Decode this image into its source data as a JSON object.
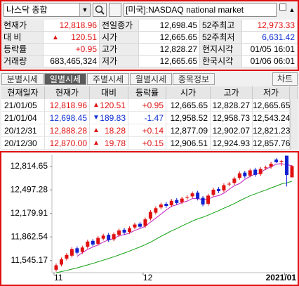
{
  "search": {
    "symbol": "나스닥 종합",
    "market": "[미국]:NASDAQ national market"
  },
  "quote": {
    "rows": [
      {
        "cells": [
          "현재가",
          "12,818.96",
          "전일종가",
          "12,698.45",
          "52주최고",
          "12,973.33"
        ],
        "colors": [
          "#000",
          "#e01010",
          "#000",
          "#000",
          "#000",
          "#e01010"
        ]
      },
      {
        "cells": [
          "대 비",
          "120.51",
          "시가",
          "12,665.65",
          "52주최저",
          "6,631.42"
        ],
        "colors": [
          "#000",
          "#e01010",
          "#000",
          "#000",
          "#000",
          "#1030d0"
        ],
        "trend": "up"
      },
      {
        "cells": [
          "등락률",
          "+0.95",
          "고가",
          "12,828.27",
          "현지시각",
          "01/05 16:01"
        ],
        "colors": [
          "#000",
          "#e01010",
          "#000",
          "#000",
          "#000",
          "#000"
        ]
      },
      {
        "cells": [
          "거래량",
          "683,465,324",
          "저가",
          "12,665.65",
          "한국시각",
          "01/06 06:01"
        ],
        "colors": [
          "#000",
          "#000",
          "#000",
          "#000",
          "#000",
          "#000"
        ]
      }
    ]
  },
  "tabs": {
    "items": [
      "분별시세",
      "일별시세",
      "주별시세",
      "월별시세",
      "종목정보"
    ],
    "active": 1,
    "button": "차트"
  },
  "daily": {
    "header": [
      "현재일자",
      "현재가",
      "대비",
      "등락률",
      "시가",
      "고가",
      "저가"
    ],
    "rows": [
      {
        "cells": [
          "21/01/05",
          "12,818.96",
          "120.51",
          "+0.95",
          "12,665.65",
          "12,828.27",
          "12,665.65"
        ],
        "trend": "up"
      },
      {
        "cells": [
          "21/01/04",
          "12,698.45",
          "189.83",
          "-1.47",
          "12,958.52",
          "12,958.73",
          "12,543.24"
        ],
        "trend": "down"
      },
      {
        "cells": [
          "20/12/31",
          "12,888.28",
          "18.28",
          "+0.14",
          "12,877.09",
          "12,902.07",
          "12,821.23"
        ],
        "trend": "up"
      },
      {
        "cells": [
          "20/12/30",
          "12,870.00",
          "19.78",
          "+0.15",
          "12,906.51",
          "12,924.93",
          "12,857.76"
        ],
        "trend": "up"
      }
    ]
  },
  "chart_data": {
    "type": "candlestick",
    "categories": [
      "11",
      null,
      null,
      null,
      null,
      null,
      null,
      null,
      null,
      null,
      null,
      null,
      null,
      null,
      null,
      null,
      null,
      "12",
      null,
      null,
      null,
      null,
      null,
      null,
      null,
      null,
      null,
      null,
      null,
      null,
      null,
      null,
      null,
      null,
      null,
      null,
      null,
      null,
      null,
      null,
      null,
      null,
      null,
      null,
      "2021/01",
      null
    ],
    "open": [
      11420,
      11490,
      11570,
      11610,
      11710,
      11660,
      11730,
      11810,
      11770,
      11840,
      11890,
      11830,
      11890,
      11960,
      11930,
      11990,
      12040,
      12010,
      12110,
      12190,
      12260,
      12310,
      12290,
      12360,
      12330,
      12390,
      12410,
      12460,
      12390,
      12310,
      12430,
      12510,
      12490,
      12570,
      12590,
      12660,
      12730,
      12690,
      12770,
      12710,
      12790,
      12810,
      12906.51,
      12877.09,
      12958.52,
      12665.65
    ],
    "high": [
      11505,
      11585,
      11645,
      11725,
      11735,
      11745,
      11825,
      11835,
      11875,
      11905,
      11915,
      11925,
      11975,
      11985,
      12005,
      12055,
      12065,
      12125,
      12225,
      12275,
      12325,
      12335,
      12375,
      12385,
      12405,
      12425,
      12475,
      12485,
      12415,
      12445,
      12525,
      12535,
      12585,
      12605,
      12675,
      12745,
      12755,
      12785,
      12795,
      12805,
      12825,
      12875,
      12924.93,
      12902.07,
      12958.73,
      12828.27
    ],
    "low": [
      11395,
      11465,
      11545,
      11585,
      11625,
      11635,
      11705,
      11735,
      11745,
      11815,
      11795,
      11805,
      11865,
      11895,
      11905,
      11965,
      11975,
      11985,
      12085,
      12165,
      12235,
      12255,
      12265,
      12295,
      12305,
      12365,
      12385,
      12355,
      12275,
      12285,
      12405,
      12455,
      12465,
      12545,
      12565,
      12635,
      12655,
      12665,
      12675,
      12685,
      12765,
      12785,
      12857.76,
      12821.23,
      12543.24,
      12665.65
    ],
    "close": [
      11480,
      11560,
      11620,
      11700,
      11650,
      11720,
      11800,
      11760,
      11850,
      11880,
      11820,
      11900,
      11950,
      11920,
      11980,
      12030,
      12000,
      12100,
      12200,
      12250,
      12300,
      12280,
      12350,
      12320,
      12380,
      12400,
      12450,
      12380,
      12300,
      12420,
      12500,
      12480,
      12560,
      12580,
      12650,
      12720,
      12680,
      12760,
      12700,
      12780,
      12800,
      12850,
      12870,
      12888.28,
      12698.45,
      12818.96
    ],
    "up_color": "#e01010",
    "down_color": "#1020d0",
    "series": [
      {
        "color": "#c020c0",
        "values": [
          null,
          null,
          null,
          null,
          11602,
          11650,
          11694,
          11726,
          11756,
          11794,
          11822,
          11842,
          11880,
          11894,
          11914,
          11950,
          11976,
          12006,
          12062,
          12116,
          12170,
          12226,
          12276,
          12296,
          12326,
          12346,
          12380,
          12380,
          12366,
          12372,
          12404,
          12420,
          12452,
          12504,
          12554,
          12582,
          12638,
          12680,
          12712,
          12728,
          12780,
          12806,
          12844,
          12852,
          12836,
          12825
        ]
      },
      {
        "color": "#10a010",
        "values": [
          11380,
          11395,
          11410,
          11428,
          11445,
          11465,
          11485,
          11505,
          11528,
          11550,
          11572,
          11595,
          11620,
          11645,
          11672,
          11700,
          11728,
          11758,
          11792,
          11830,
          11871,
          11907,
          11944,
          11975,
          12011,
          12044,
          12077,
          12106,
          12129,
          12156,
          12187,
          12217,
          12250,
          12280,
          12313,
          12350,
          12385,
          12418,
          12443,
          12470,
          12495,
          12523,
          12549,
          12577,
          12592,
          12613
        ]
      }
    ],
    "ylim": [
      11400,
      12935
    ],
    "yticks": [
      {
        "value": 11545.17,
        "label": "11,545.17"
      },
      {
        "value": 11862.54,
        "label": "11,862.54"
      },
      {
        "value": 12179.91,
        "label": "12,179.91"
      },
      {
        "value": 12497.28,
        "label": "12,497.28"
      },
      {
        "value": 12814.65,
        "label": "12,814.65"
      }
    ]
  }
}
